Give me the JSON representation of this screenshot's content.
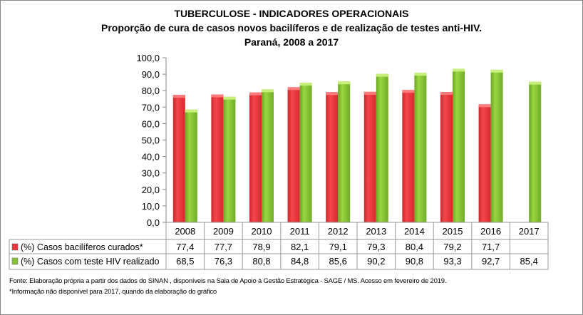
{
  "chart_data": {
    "type": "bar",
    "title": "TUBERCULOSE - INDICADORES OPERACIONAIS",
    "subtitle": "Proporção de cura de casos novos bacilíferos e de realização de testes anti-HIV.",
    "subtitle2": "Paraná, 2008 a 2017",
    "categories": [
      "2008",
      "2009",
      "2010",
      "2011",
      "2012",
      "2013",
      "2014",
      "2015",
      "2016",
      "2017"
    ],
    "series": [
      {
        "name": "(%) Casos bacilíferos curados*",
        "color": "#e8353a",
        "values": [
          77.4,
          77.7,
          78.9,
          82.1,
          79.1,
          79.3,
          80.4,
          79.2,
          71.7,
          null
        ],
        "labels": [
          "77,4",
          "77,7",
          "78,9",
          "82,1",
          "79,1",
          "79,3",
          "80,4",
          "79,2",
          "71,7",
          ""
        ]
      },
      {
        "name": "(%) Casos com teste HIV realizado",
        "color": "#86c431",
        "values": [
          68.5,
          76.3,
          80.8,
          84.8,
          85.6,
          90.2,
          90.8,
          93.3,
          92.7,
          85.4
        ],
        "labels": [
          "68,5",
          "76,3",
          "80,8",
          "84,8",
          "85,6",
          "90,2",
          "90,8",
          "93,3",
          "92,7",
          "85,4"
        ]
      }
    ],
    "ylim": [
      0,
      100
    ],
    "yticks": [
      "0,0",
      "10,0",
      "20,0",
      "30,0",
      "40,0",
      "50,0",
      "60,0",
      "70,0",
      "80,0",
      "90,0",
      "100,0"
    ],
    "grid": false,
    "legend": "data-table"
  },
  "footer": {
    "source": "Fonte: Elaboração própria a partir dos dados do SINAN , disponíveis na Sala de Apoio à Gestão Estratégica - SAGE / MS. Acesso em fevereiro de 2019.",
    "note": "*Informação não disponível para 2017, quando da elaboração do gráfico"
  }
}
